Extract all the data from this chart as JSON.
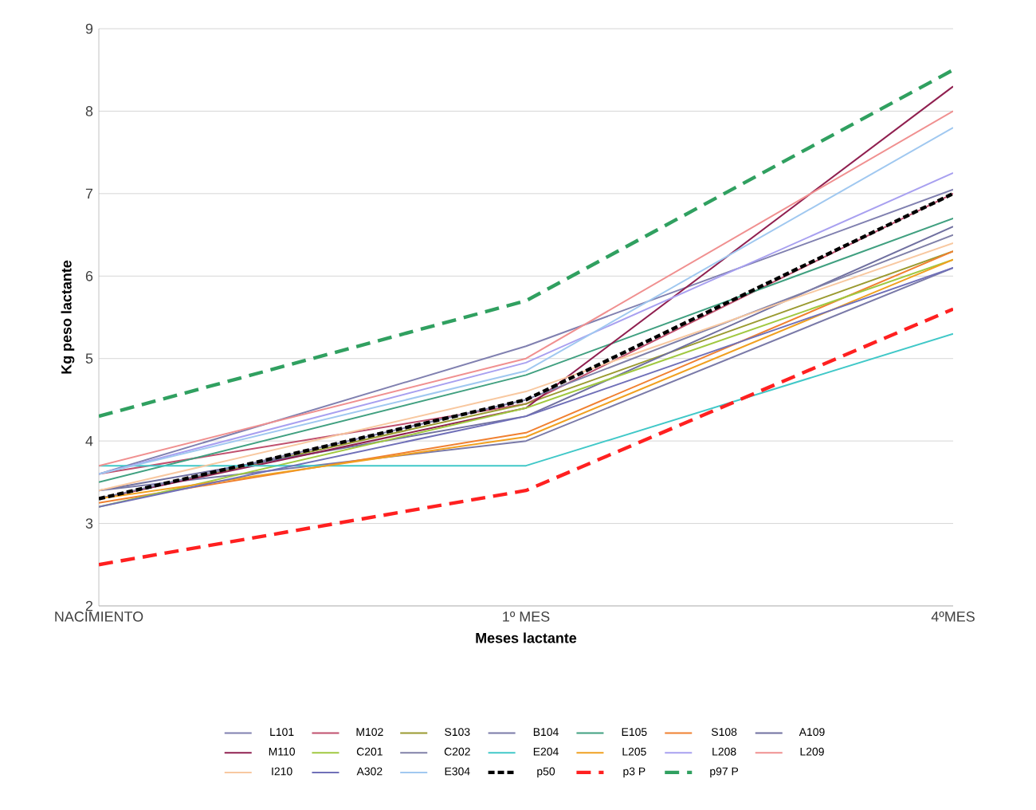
{
  "chart_data": {
    "type": "line",
    "xlabel": "Meses lactante",
    "ylabel": "Kg peso lactante",
    "categories": [
      "NACIMIENTO",
      "1º MES",
      "4ºMES"
    ],
    "ylim": [
      2,
      9
    ],
    "yticks": [
      2,
      3,
      4,
      5,
      6,
      7,
      8,
      9
    ],
    "grid": "y",
    "legend": "bottom",
    "line_style": "solid",
    "series": [
      {
        "name": "L101",
        "color": "#8080b0",
        "values": [
          3.6,
          5.15,
          7.05
        ]
      },
      {
        "name": "M102",
        "color": "#c0506e",
        "values": [
          3.6,
          4.45,
          7.0
        ]
      },
      {
        "name": "S103",
        "color": "#9a9a30",
        "values": [
          3.3,
          4.45,
          6.3
        ]
      },
      {
        "name": "B104",
        "color": "#7a7aa8",
        "values": [
          3.4,
          4.0,
          6.1
        ]
      },
      {
        "name": "E105",
        "color": "#40a080",
        "values": [
          3.5,
          4.8,
          6.7
        ]
      },
      {
        "name": "S108",
        "color": "#f08030",
        "values": [
          3.25,
          4.1,
          6.3
        ]
      },
      {
        "name": "A109",
        "color": "#7070a0",
        "values": [
          3.4,
          4.3,
          6.6
        ]
      },
      {
        "name": "M110",
        "color": "#902050",
        "values": [
          3.3,
          4.4,
          8.3
        ]
      },
      {
        "name": "C201",
        "color": "#a0c840",
        "values": [
          3.2,
          4.4,
          6.2
        ]
      },
      {
        "name": "C202",
        "color": "#8080a8",
        "values": [
          3.3,
          4.5,
          6.5
        ]
      },
      {
        "name": "E204",
        "color": "#40c8c8",
        "values": [
          3.7,
          3.7,
          5.3
        ]
      },
      {
        "name": "L205",
        "color": "#f0a020",
        "values": [
          3.3,
          4.05,
          6.2
        ]
      },
      {
        "name": "L208",
        "color": "#a8a0f0",
        "values": [
          3.6,
          4.95,
          7.25
        ]
      },
      {
        "name": "L209",
        "color": "#f09090",
        "values": [
          3.7,
          5.0,
          8.0
        ]
      },
      {
        "name": "I210",
        "color": "#f8c8a0",
        "values": [
          3.4,
          4.6,
          6.4
        ]
      },
      {
        "name": "A302",
        "color": "#7070b8",
        "values": [
          3.2,
          4.3,
          6.1
        ]
      },
      {
        "name": "E304",
        "color": "#a0c8f0",
        "values": [
          3.6,
          4.85,
          7.8
        ]
      },
      {
        "name": "p50",
        "color": "#000000",
        "line_style": "dotted",
        "values": [
          3.3,
          4.5,
          7.0
        ]
      },
      {
        "name": "p3 P",
        "color": "#ff2020",
        "line_style": "dashed",
        "values": [
          2.5,
          3.4,
          5.6
        ]
      },
      {
        "name": "p97 P",
        "color": "#30a060",
        "line_style": "dashed",
        "values": [
          4.3,
          5.7,
          8.5
        ]
      }
    ]
  }
}
